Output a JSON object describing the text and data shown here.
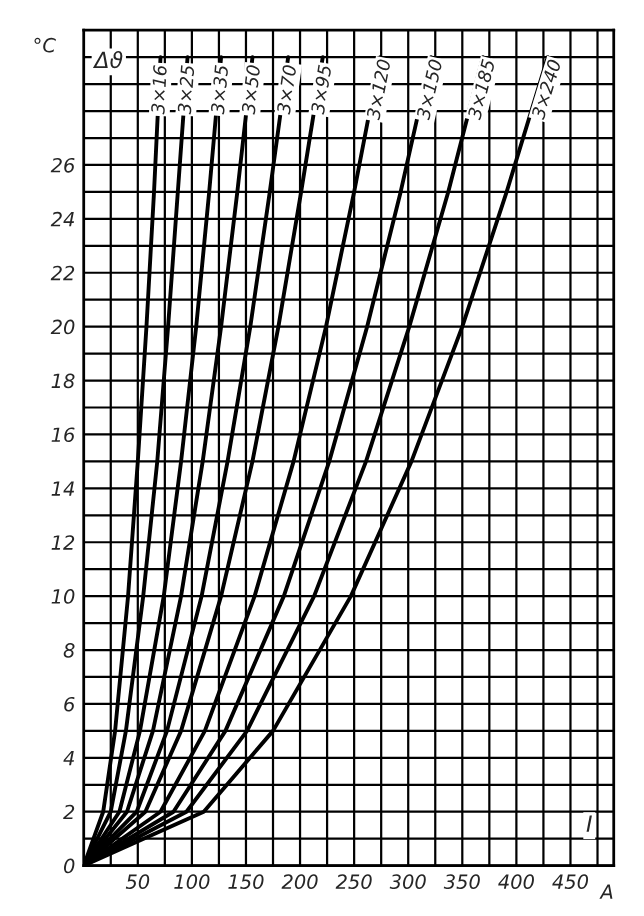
{
  "chart_data": {
    "type": "line",
    "xlabel": "A",
    "ylabel": "°C",
    "annotations": [
      "Δϑ",
      "I"
    ],
    "xlim": [
      0,
      490
    ],
    "ylim": [
      0,
      31
    ],
    "xticks": [
      {
        "value": 25,
        "label": null
      },
      50,
      {
        "value": 75,
        "label": null
      },
      100,
      {
        "value": 125,
        "label": null
      },
      150,
      {
        "value": 175,
        "label": null
      },
      200,
      {
        "value": 225,
        "label": null
      },
      250,
      {
        "value": 275,
        "label": null
      },
      300,
      {
        "value": 325,
        "label": null
      },
      350,
      {
        "value": 375,
        "label": null
      },
      400,
      {
        "value": 425,
        "label": null
      },
      450,
      {
        "value": 475,
        "label": null
      }
    ],
    "yticks": [
      0,
      {
        "value": 1,
        "label": null
      },
      2,
      {
        "value": 3,
        "label": null
      },
      4,
      {
        "value": 5,
        "label": null
      },
      6,
      {
        "value": 7,
        "label": null
      },
      8,
      {
        "value": 9,
        "label": null
      },
      10,
      {
        "value": 11,
        "label": null
      },
      12,
      {
        "value": 13,
        "label": null
      },
      14,
      {
        "value": 15,
        "label": null
      },
      16,
      {
        "value": 17,
        "label": null
      },
      18,
      {
        "value": 19,
        "label": null
      },
      20,
      {
        "value": 21,
        "label": null
      },
      22,
      {
        "value": 23,
        "label": null
      },
      24,
      {
        "value": 25,
        "label": null
      },
      26,
      {
        "value": 27,
        "label": null
      },
      {
        "value": 28,
        "label": null
      },
      {
        "value": 29,
        "label": null
      },
      {
        "value": 30,
        "label": null
      }
    ],
    "grid": true,
    "legend": false,
    "marker": "none",
    "line_style": "solid",
    "series": [
      {
        "name": "3×16",
        "color": "#000000",
        "x": [
          0,
          18,
          29,
          41,
          50,
          58,
          65,
          71
        ],
        "values": [
          0,
          2,
          5,
          10,
          15,
          20,
          25,
          30
        ]
      },
      {
        "name": "3×25",
        "color": "#000000",
        "x": [
          0,
          25,
          39,
          55,
          68,
          78,
          87,
          96
        ],
        "values": [
          0,
          2,
          5,
          10,
          15,
          20,
          25,
          30
        ]
      },
      {
        "name": "3×35",
        "color": "#000000",
        "x": [
          0,
          33,
          52,
          74,
          90,
          104,
          116,
          127
        ],
        "values": [
          0,
          2,
          5,
          10,
          15,
          20,
          25,
          30
        ]
      },
      {
        "name": "3×50",
        "color": "#000000",
        "x": [
          0,
          40,
          64,
          90,
          110,
          127,
          142,
          156
        ],
        "values": [
          0,
          2,
          5,
          10,
          15,
          20,
          25,
          30
        ]
      },
      {
        "name": "3×70",
        "color": "#000000",
        "x": [
          0,
          49,
          77,
          109,
          133,
          154,
          172,
          189
        ],
        "values": [
          0,
          2,
          5,
          10,
          15,
          20,
          25,
          30
        ]
      },
      {
        "name": "3×95",
        "color": "#000000",
        "x": [
          0,
          57,
          90,
          127,
          156,
          180,
          201,
          221
        ],
        "values": [
          0,
          2,
          5,
          10,
          15,
          20,
          25,
          30
        ]
      },
      {
        "name": "3×120",
        "color": "#000000",
        "x": [
          0,
          71,
          112,
          158,
          194,
          224,
          250,
          274
        ],
        "values": [
          0,
          2,
          5,
          10,
          15,
          20,
          25,
          30
        ]
      },
      {
        "name": "3×150",
        "color": "#000000",
        "x": [
          0,
          83,
          131,
          185,
          227,
          262,
          293,
          321
        ],
        "values": [
          0,
          2,
          5,
          10,
          15,
          20,
          25,
          30
        ]
      },
      {
        "name": "3×185",
        "color": "#000000",
        "x": [
          0,
          95,
          151,
          213,
          261,
          301,
          337,
          369
        ],
        "values": [
          0,
          2,
          5,
          10,
          15,
          20,
          25,
          30
        ]
      },
      {
        "name": "3×240",
        "color": "#000000",
        "x": [
          0,
          111,
          175,
          247,
          303,
          350,
          391,
          429
        ],
        "values": [
          0,
          2,
          5,
          10,
          15,
          20,
          25,
          30
        ]
      }
    ]
  }
}
